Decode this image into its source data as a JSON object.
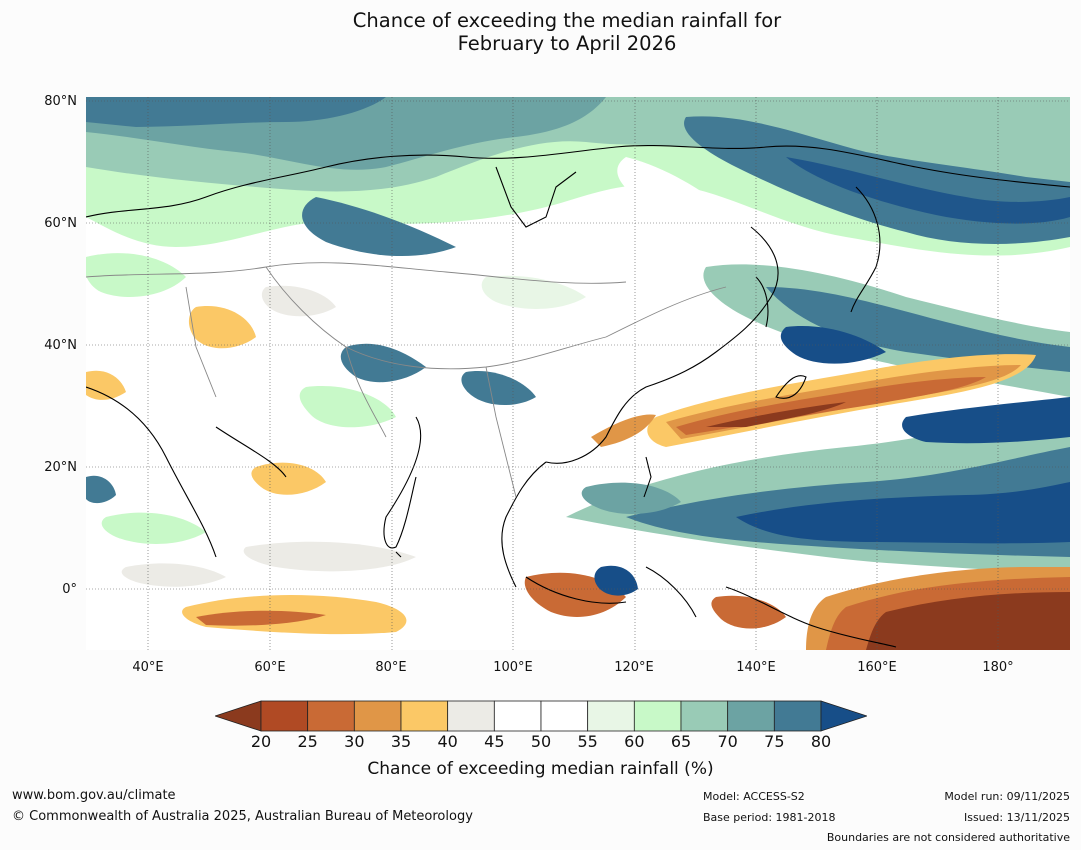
{
  "title": {
    "line1": "Chance of exceeding the median rainfall for",
    "line2": "February to April 2026"
  },
  "lat_labels": [
    "80°N",
    "60°N",
    "40°N",
    "20°N",
    "0°"
  ],
  "lon_labels": [
    "40°E",
    "60°E",
    "80°E",
    "100°E",
    "120°E",
    "140°E",
    "160°E",
    "180°"
  ],
  "colorbar": {
    "ticks": [
      "20",
      "25",
      "30",
      "35",
      "40",
      "45",
      "50",
      "55",
      "60",
      "65",
      "70",
      "75",
      "80"
    ],
    "colors": [
      "#8b3a1e",
      "#b04a24",
      "#c96a35",
      "#e09647",
      "#fbc866",
      "#ecebe6",
      "#ffffff",
      "#ffffff",
      "#e8f6e6",
      "#c8f9c8",
      "#99cbb6",
      "#6ca3a3",
      "#427a94",
      "#174e88"
    ],
    "title": "Chance of exceeding median rainfall (%)"
  },
  "footer": {
    "website": "www.bom.gov.au/climate",
    "copyright": "© Commonwealth of Australia 2025, Australian Bureau of Meteorology",
    "model": "Model: ACCESS-S2",
    "base_period": "Base period: 1981-2018",
    "model_run": "Model run: 09/11/2025",
    "issued": "Issued: 13/11/2025",
    "boundaries": "Boundaries are not considered authoritative"
  }
}
